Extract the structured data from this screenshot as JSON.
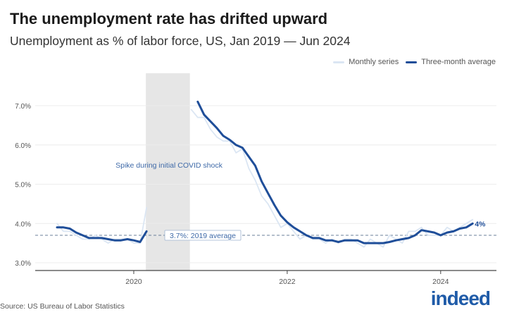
{
  "header": {
    "title": "The unemployment rate has drifted upward",
    "subtitle": "Unemployment as % of labor force, US, Jan 2019 — Jun 2024"
  },
  "footer": {
    "source": "Source: US Bureau of Labor Statistics",
    "logo": "indeed"
  },
  "chart_data": {
    "type": "line",
    "title": "The unemployment rate has drifted upward",
    "subtitle": "Unemployment as % of labor force, US, Jan 2019 — Jun 2024",
    "x_start": "2019-01",
    "x_frequency": "monthly",
    "x_ticks": [
      "2020",
      "2022",
      "2024"
    ],
    "y_ticks": [
      "3.0%",
      "4.0%",
      "5.0%",
      "6.0%",
      "7.0%"
    ],
    "ylim": [
      3.0,
      7.0
    ],
    "grid": true,
    "legend_position": "top-right",
    "colors": {
      "monthly": "#dbe6f3",
      "average": "#1f4e99",
      "shade": "#e6e6e6",
      "reference": "#6b7f99"
    },
    "shaded_region": {
      "start": "2020-03",
      "end": "2020-10",
      "label": "Spike during initial COVID shock"
    },
    "reference_line": {
      "value": 3.7,
      "label": "3.7%: 2019 average"
    },
    "end_label": "4%",
    "series": [
      {
        "name": "Monthly series",
        "values": [
          4.0,
          3.8,
          3.8,
          3.7,
          3.6,
          3.6,
          3.7,
          3.6,
          3.5,
          3.6,
          3.6,
          3.6,
          3.5,
          3.5,
          4.4,
          null,
          null,
          null,
          null,
          null,
          null,
          6.9,
          6.7,
          6.7,
          6.4,
          6.2,
          6.1,
          6.1,
          5.8,
          5.9,
          5.4,
          5.1,
          4.7,
          4.5,
          4.2,
          3.9,
          4.0,
          3.8,
          3.6,
          3.7,
          3.6,
          3.6,
          3.5,
          3.6,
          3.5,
          3.6,
          3.6,
          3.5,
          3.4,
          3.6,
          3.5,
          3.4,
          3.7,
          3.6,
          3.5,
          3.8,
          3.8,
          3.9,
          3.7,
          3.7,
          3.7,
          3.9,
          3.8,
          3.9,
          4.0,
          4.1
        ]
      },
      {
        "name": "Three-month average",
        "values": [
          3.9,
          3.9,
          3.87,
          3.77,
          3.7,
          3.63,
          3.63,
          3.63,
          3.6,
          3.57,
          3.57,
          3.6,
          3.57,
          3.53,
          3.8,
          null,
          null,
          null,
          null,
          null,
          null,
          null,
          7.1,
          6.77,
          6.6,
          6.43,
          6.23,
          6.13,
          6.0,
          5.93,
          5.7,
          5.47,
          5.07,
          4.77,
          4.47,
          4.2,
          4.03,
          3.9,
          3.8,
          3.7,
          3.63,
          3.63,
          3.57,
          3.57,
          3.53,
          3.57,
          3.57,
          3.57,
          3.5,
          3.5,
          3.5,
          3.5,
          3.53,
          3.57,
          3.6,
          3.63,
          3.7,
          3.83,
          3.8,
          3.77,
          3.7,
          3.77,
          3.8,
          3.87,
          3.9,
          4.0
        ]
      }
    ]
  }
}
